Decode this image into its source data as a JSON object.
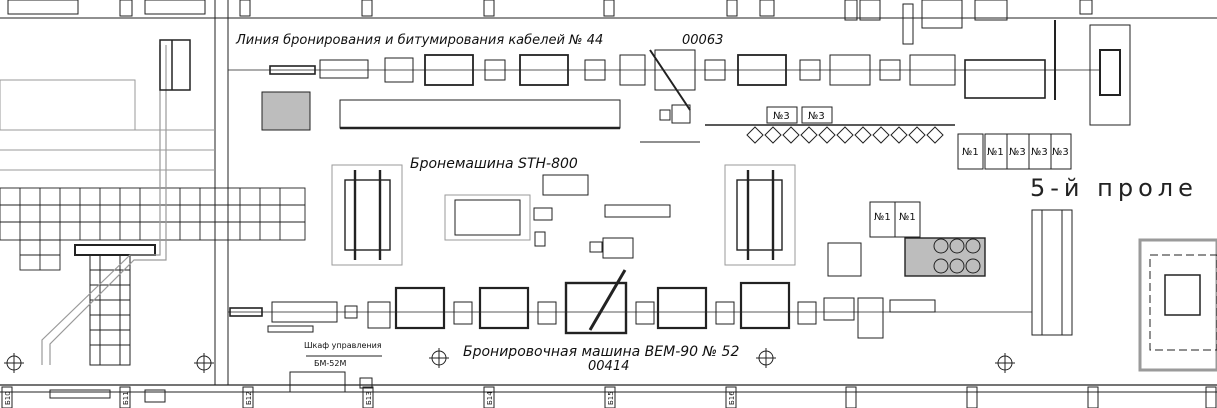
{
  "labels": {
    "line44_title": "Линия бронирования и битумирования кабелей № 44",
    "line44_code": "00063",
    "stx_title": "Бронемашина STH-800",
    "span5": "5-й  проле",
    "bem_title": "Бронировочная машина BEM-90 № 52",
    "bem_code": "00414",
    "cabinet_line1": "Шкаф управления",
    "cabinet_line2": "БМ-52М"
  },
  "tags": {
    "top_pair": [
      "№3",
      "№3"
    ],
    "right_row": [
      "№1",
      "№1",
      "№3",
      "№3",
      "№3"
    ],
    "mid_pair": [
      "№1",
      "№1"
    ]
  },
  "column_marks": [
    "Б10",
    "Б11",
    "Б12",
    "Б13",
    "Б14",
    "Б15",
    "Б16"
  ],
  "colors": {
    "line": "#222222",
    "grey_fill": "#bdbdbd",
    "light_grey": "#9a9a9a",
    "paper": "#ffffff"
  }
}
